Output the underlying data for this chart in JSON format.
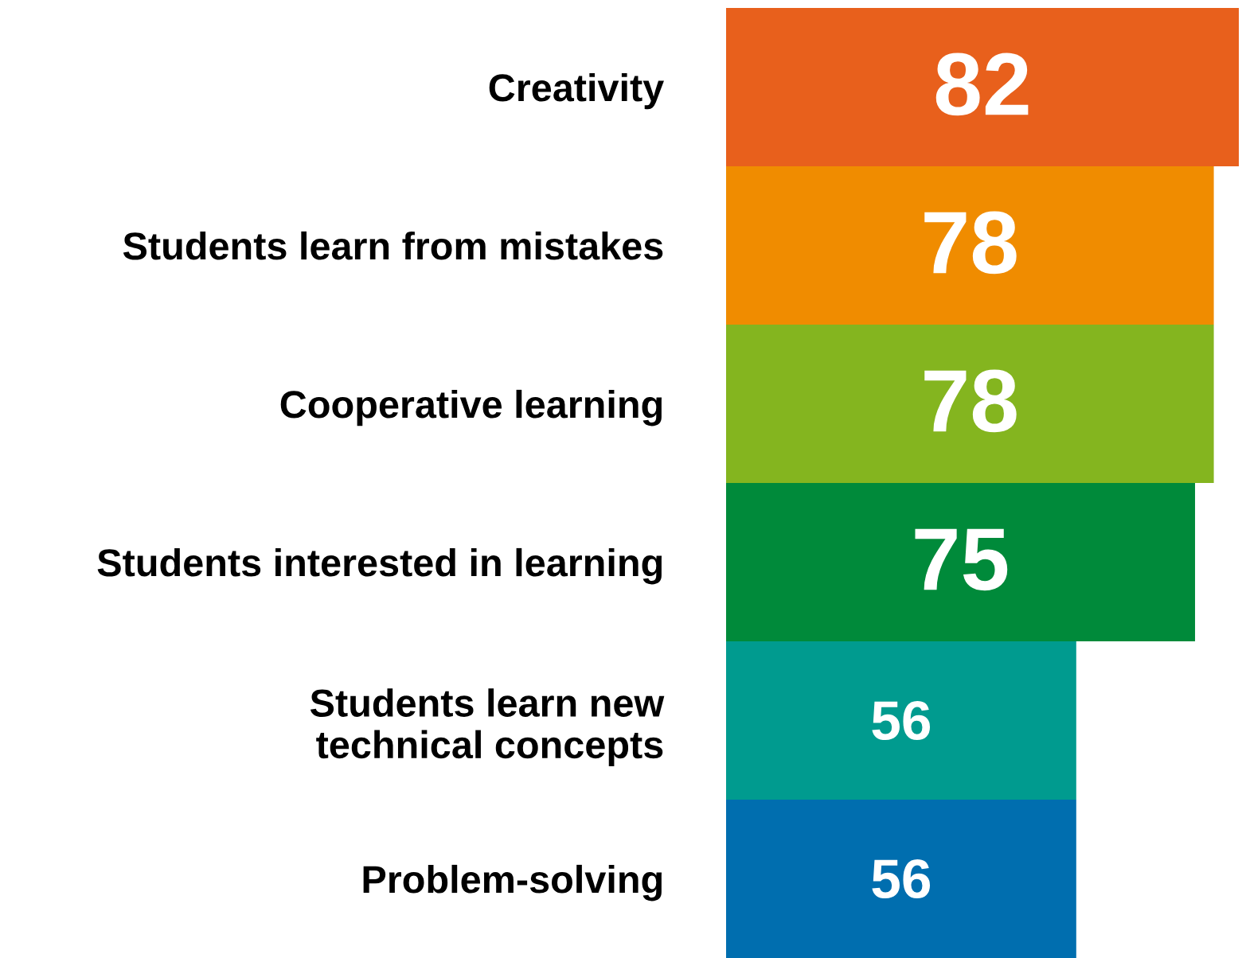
{
  "chart_data": {
    "type": "bar",
    "orientation": "horizontal",
    "categories": [
      "Creativity",
      "Students learn from mistakes",
      "Cooperative learning",
      "Students interested in learning",
      "Students learn new\ntechnical concepts",
      "Problem-solving"
    ],
    "values": [
      82,
      78,
      78,
      75,
      56,
      56
    ],
    "colors": [
      "#e8601c",
      "#f08c00",
      "#84b51f",
      "#008a3a",
      "#009b8f",
      "#006eaf"
    ],
    "data_labels": true,
    "grid": false,
    "legend": false,
    "tick_labels": "y"
  }
}
